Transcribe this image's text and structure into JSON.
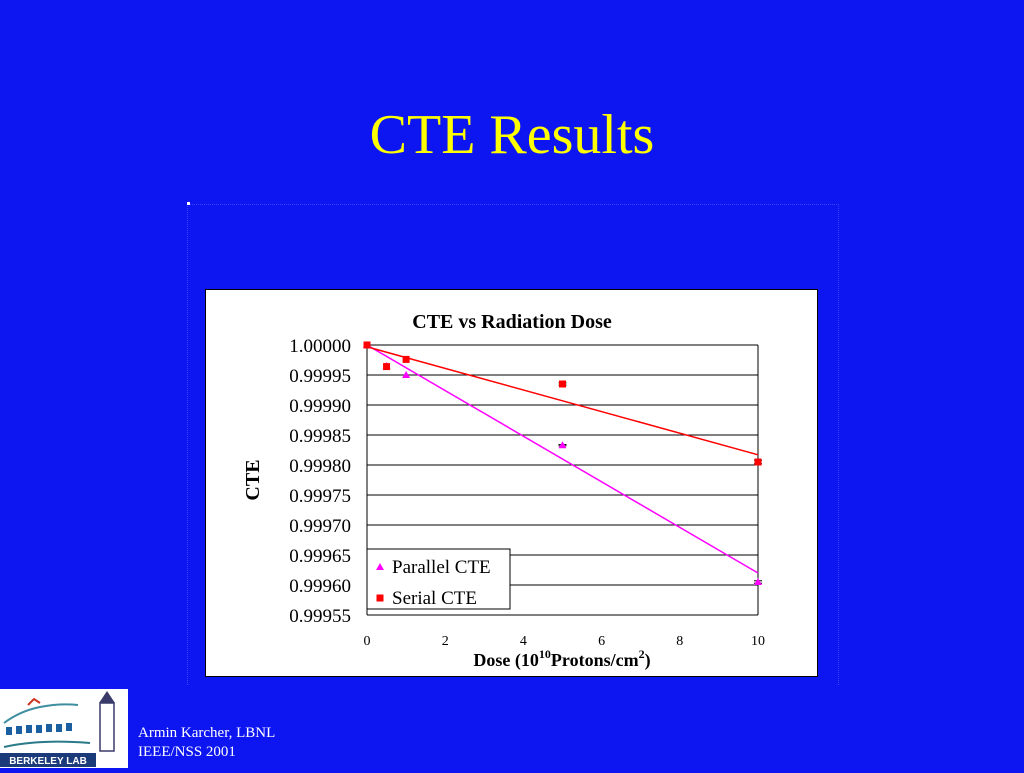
{
  "slide": {
    "title": "CTE Results",
    "footer_line1": "Armin Karcher, LBNL",
    "footer_line2": "IEEE/NSS 2001",
    "logo_text": "BERKELEY LAB"
  },
  "colors": {
    "background": "#0d16f0",
    "title": "#ffff00",
    "parallel": "#ff00ff",
    "serial": "#ff0000"
  },
  "chart_data": {
    "type": "scatter",
    "title": "CTE vs Radiation Dose",
    "ylabel": "CTE",
    "xlabel": "Dose (10",
    "xlabel_sup1": "10",
    "xlabel_mid": "Protons/cm",
    "xlabel_sup2": "2",
    "xlabel_end": ")",
    "xlim": [
      0,
      10
    ],
    "ylim": [
      0.99955,
      1.0
    ],
    "x_ticks": [
      "0",
      "2",
      "4",
      "6",
      "8",
      "10"
    ],
    "y_ticks": [
      "1.00000",
      "0.99995",
      "0.99990",
      "0.99985",
      "0.99980",
      "0.99975",
      "0.99970",
      "0.99965",
      "0.99960",
      "0.99955"
    ],
    "grid": "horizontal",
    "legend_position": "bottom-left",
    "series": [
      {
        "name": "Parallel CTE",
        "marker": "triangle",
        "x": [
          0,
          0.5,
          1,
          5,
          10
        ],
        "y": [
          1.0,
          0.999965,
          0.99995,
          0.999833,
          0.999605
        ],
        "err": [
          0,
          0,
          0,
          1e-06,
          2e-06
        ],
        "trend": [
          [
            0,
            1.0
          ],
          [
            10,
            0.99962
          ]
        ]
      },
      {
        "name": "Serial CTE",
        "marker": "square",
        "x": [
          0,
          0.5,
          1,
          5,
          10
        ],
        "y": [
          1.0,
          0.999964,
          0.999976,
          0.999935,
          0.999805
        ],
        "err": [
          0,
          0,
          0,
          2e-06,
          3e-06
        ],
        "trend": [
          [
            0,
            0.999997
          ],
          [
            10,
            0.999817
          ]
        ]
      }
    ]
  }
}
